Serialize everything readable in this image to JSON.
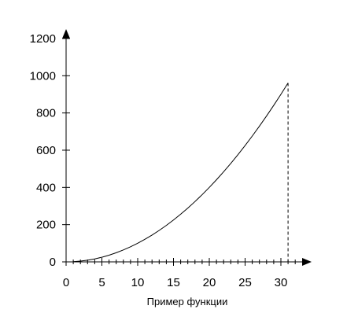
{
  "chart_data": {
    "type": "line",
    "title": "",
    "xlabel": "Пример функции",
    "ylabel": "",
    "xlim": [
      0,
      34
    ],
    "ylim": [
      0,
      1250
    ],
    "x_ticks": [
      0,
      5,
      10,
      15,
      20,
      25,
      30
    ],
    "x_tick_labels": [
      "0",
      "5",
      "10",
      "15",
      "20",
      "25",
      "30"
    ],
    "x_minor_tick_step": 1,
    "y_ticks": [
      0,
      200,
      400,
      600,
      800,
      1000,
      1200
    ],
    "y_tick_labels": [
      "0",
      "200",
      "400",
      "600",
      "800",
      "1000",
      "1200"
    ],
    "grid": false,
    "legend": "none",
    "colors": {
      "line": "#000000",
      "axis": "#000000",
      "background": "#ffffff"
    },
    "series": [
      {
        "x": [
          1,
          2,
          3,
          4,
          5,
          6,
          7,
          8,
          9,
          10,
          11,
          12,
          13,
          14,
          15,
          16,
          17,
          18,
          19,
          20,
          21,
          22,
          23,
          24,
          25,
          26,
          27,
          28,
          29,
          30,
          31
        ],
        "y": [
          1,
          4,
          9,
          16,
          25,
          36,
          49,
          64,
          81,
          100,
          121,
          144,
          169,
          196,
          225,
          256,
          289,
          324,
          361,
          400,
          441,
          484,
          529,
          576,
          625,
          676,
          729,
          784,
          841,
          900,
          961
        ]
      }
    ],
    "annotations": [
      {
        "type": "vertical-dashed-line",
        "x": 31,
        "y_from": 0,
        "y_to": 961
      }
    ]
  }
}
